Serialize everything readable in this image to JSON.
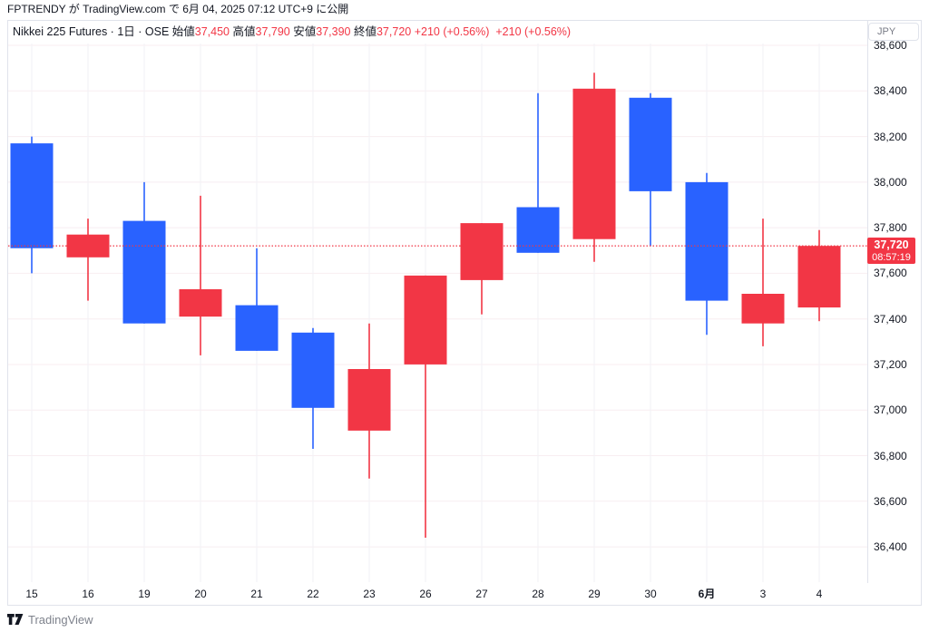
{
  "topbar": {
    "user": "FPTRENDY",
    "particle1": " が ",
    "site": "TradingView.com",
    "particle2": " で ",
    "published": "6月 04, 2025 07:12 UTC+9 に公開"
  },
  "header": {
    "title": "Nikkei 225 Futures · 1日 · OSE",
    "sep": "  ",
    "fields": [
      {
        "label": "始値",
        "value": "37,450"
      },
      {
        "label": "高値",
        "value": "37,790"
      },
      {
        "label": "安値",
        "value": "37,390"
      },
      {
        "label": "終値",
        "value": "37,720"
      }
    ],
    "change": "+210 (+0.56%)",
    "change_from_settlement": "+210 (+0.56%)"
  },
  "axis": {
    "currency": "JPY"
  },
  "attribution": {
    "text": "TradingView"
  },
  "chart_data": {
    "type": "candlestick",
    "symbol": "Nikkei 225 Futures",
    "interval": "1日",
    "exchange": "OSE",
    "currency": "JPY",
    "up_color": "#f23645",
    "down_color": "#2962ff",
    "grid_h_color": "#f8eef1",
    "grid_v_color": "#f2f2f6",
    "ylim": [
      36250,
      38610
    ],
    "y_axis_ticks": [
      {
        "value": 38600,
        "label": "38,600"
      },
      {
        "value": 38400,
        "label": "38,400"
      },
      {
        "value": 38200,
        "label": "38,200"
      },
      {
        "value": 38000,
        "label": "38,000"
      },
      {
        "value": 37800,
        "label": "37,800"
      },
      {
        "value": 37600,
        "label": "37,600"
      },
      {
        "value": 37400,
        "label": "37,400"
      },
      {
        "value": 37200,
        "label": "37,200"
      },
      {
        "value": 37000,
        "label": "37,000"
      },
      {
        "value": 36800,
        "label": "36,800"
      },
      {
        "value": 36600,
        "label": "36,600"
      },
      {
        "value": 36400,
        "label": "36,400"
      }
    ],
    "candles": [
      {
        "label": "15",
        "open": 38170,
        "high": 38200,
        "low": 37600,
        "close": 37710
      },
      {
        "label": "16",
        "open": 37670,
        "high": 37840,
        "low": 37480,
        "close": 37770
      },
      {
        "label": "19",
        "open": 37830,
        "high": 38000,
        "low": 37380,
        "close": 37380
      },
      {
        "label": "20",
        "open": 37410,
        "high": 37940,
        "low": 37240,
        "close": 37530
      },
      {
        "label": "21",
        "open": 37460,
        "high": 37710,
        "low": 37260,
        "close": 37260
      },
      {
        "label": "22",
        "open": 37340,
        "high": 37360,
        "low": 36830,
        "close": 37010
      },
      {
        "label": "23",
        "open": 36910,
        "high": 37380,
        "low": 36700,
        "close": 37180
      },
      {
        "label": "26",
        "open": 37200,
        "high": 37590,
        "low": 36440,
        "close": 37590
      },
      {
        "label": "27",
        "open": 37570,
        "high": 37820,
        "low": 37420,
        "close": 37820
      },
      {
        "label": "28",
        "open": 37890,
        "high": 38390,
        "low": 37690,
        "close": 37690
      },
      {
        "label": "29",
        "open": 37750,
        "high": 38480,
        "low": 37650,
        "close": 38410
      },
      {
        "label": "30",
        "open": 38370,
        "high": 38390,
        "low": 37720,
        "close": 37960
      },
      {
        "label": "6月",
        "open": 38000,
        "high": 38040,
        "low": 37330,
        "close": 37480,
        "bold": true
      },
      {
        "label": "3",
        "open": 37380,
        "high": 37840,
        "low": 37280,
        "close": 37510
      },
      {
        "label": "4",
        "open": 37450,
        "high": 37790,
        "low": 37390,
        "close": 37720
      }
    ],
    "current_price": {
      "value": 37720,
      "label": "37,720",
      "countdown": "08:57:19"
    }
  }
}
